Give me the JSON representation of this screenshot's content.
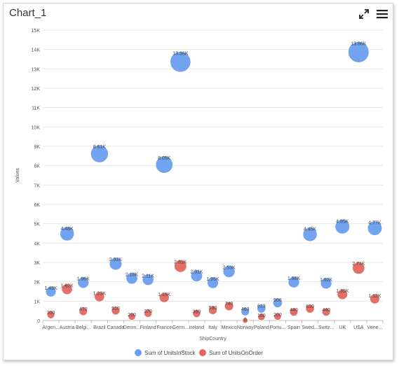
{
  "header": {
    "title": "Chart_1",
    "icons": [
      "expand-icon",
      "menu-icon"
    ]
  },
  "colors": {
    "series1": "#6a9ff0",
    "series2": "#e2685f",
    "grid": "#e6e6e6",
    "axis_text": "#555555"
  },
  "chart_data": {
    "type": "bubble",
    "xlabel": "ShipCountry",
    "ylabel": "Values",
    "ylim": [
      0,
      15000
    ],
    "yticks": [
      "0",
      "1K",
      "2K",
      "3K",
      "4K",
      "5K",
      "6K",
      "7K",
      "8K",
      "9K",
      "10K",
      "11K",
      "12K",
      "13K",
      "14K",
      "15K"
    ],
    "grid": true,
    "legend_position": "bottom",
    "categories": [
      "Argen...",
      "Austria",
      "Belgi...",
      "Brazil",
      "Canada",
      "Denm...",
      "Finland",
      "France",
      "Germ...",
      "Ireland",
      "Italy",
      "Mexico",
      "Norway",
      "Poland",
      "Portu...",
      "Spain",
      "Swed...",
      "Switz...",
      "UK",
      "USA",
      "Vene..."
    ],
    "series": [
      {
        "name": "Sum of UnitsInStock",
        "values": [
          1490,
          4480,
          1960,
          8610,
          2930,
          2180,
          2110,
          8050,
          13360,
          2310,
          1950,
          2530,
          463,
          613,
          906,
          1980,
          4450,
          1920,
          4850,
          13860,
          4770
        ],
        "labels": [
          "1.49K",
          "4.48K",
          "1.96K",
          "8.61K",
          "2.93K",
          "2.18K",
          "2.11K",
          "8.05K",
          "13.36K",
          "2.31K",
          "1.95K",
          "2.53K",
          "463",
          "613",
          "906",
          "1.98K",
          "4.45K",
          "1.92K",
          "4.85K",
          "13.86K",
          "4.77K"
        ]
      },
      {
        "name": "Sum of UnitsOnOrder",
        "values": [
          300,
          1620,
          470,
          1230,
          510,
          200,
          370,
          1190,
          2810,
          360,
          530,
          740,
          0,
          180,
          200,
          440,
          610,
          440,
          1350,
          2710,
          1120
        ],
        "labels": [
          "300",
          "1.62K",
          "470",
          "1.23K",
          "510",
          "200",
          "370",
          "1.19K",
          "2.81K",
          "360",
          "530",
          "740",
          "0",
          "180",
          "200",
          "440",
          "610",
          "440",
          "1.35K",
          "2.71K",
          "1.12K"
        ]
      }
    ]
  }
}
